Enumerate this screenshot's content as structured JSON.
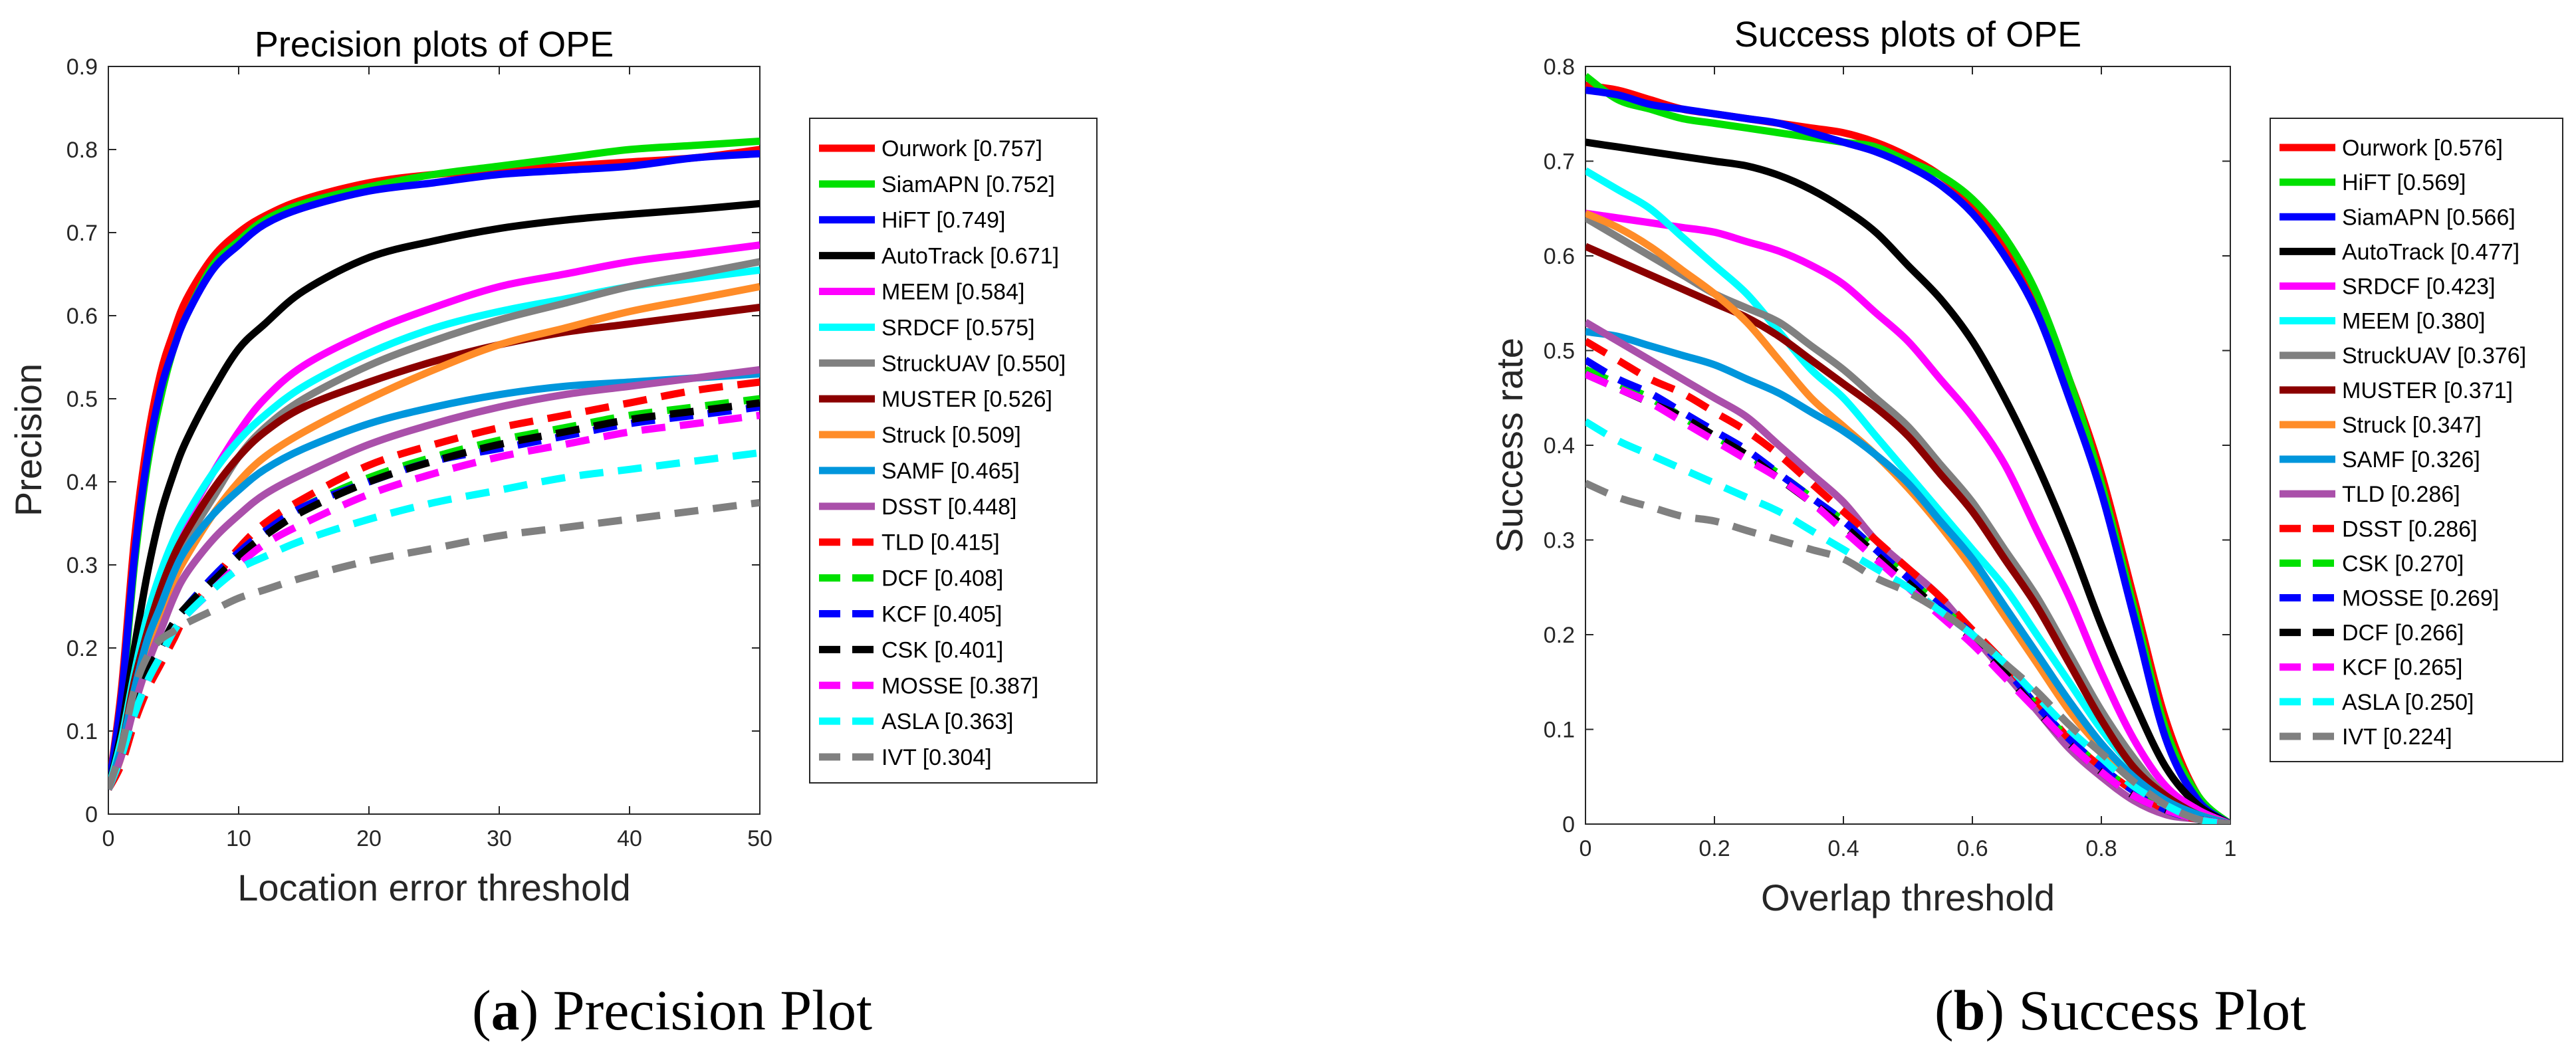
{
  "colors": {
    "red": "#ff0000",
    "green": "#00e000",
    "blue": "#0000ff",
    "black": "#000000",
    "magenta": "#ff00ff",
    "cyan": "#00ffff",
    "gray": "#808080",
    "darkred": "#8b0000",
    "orange": "#ff8c28",
    "skyblue": "#0096dc",
    "purple": "#aa50aa"
  },
  "captions": [
    {
      "letter": "a",
      "text": "Precision Plot"
    },
    {
      "letter": "b",
      "text": "Success Plot"
    }
  ],
  "chart_data": [
    {
      "type": "line",
      "title": "Precision plots of OPE",
      "xlabel": "Location error threshold",
      "ylabel": "Precision",
      "xlim": [
        0,
        50
      ],
      "ylim": [
        0,
        0.9
      ],
      "xticks": [
        0,
        10,
        20,
        30,
        40,
        50
      ],
      "yticks": [
        0,
        0.1,
        0.2,
        0.3,
        0.4,
        0.5,
        0.6,
        0.7,
        0.8,
        0.9
      ],
      "legend": "outside-right",
      "x": [
        0,
        1,
        2,
        3,
        4,
        5,
        6,
        8,
        10,
        12,
        15,
        20,
        25,
        30,
        35,
        40,
        45,
        50
      ],
      "series": [
        {
          "name": "Ourwork [0.757]",
          "color": "red",
          "dash": false,
          "values": [
            0.03,
            0.15,
            0.33,
            0.45,
            0.53,
            0.58,
            0.62,
            0.67,
            0.7,
            0.72,
            0.74,
            0.76,
            0.77,
            0.775,
            0.78,
            0.785,
            0.79,
            0.8
          ]
        },
        {
          "name": "SiamAPN [0.752]",
          "color": "green",
          "dash": false,
          "values": [
            0.03,
            0.13,
            0.3,
            0.42,
            0.5,
            0.56,
            0.6,
            0.66,
            0.69,
            0.715,
            0.735,
            0.755,
            0.77,
            0.78,
            0.79,
            0.8,
            0.805,
            0.81
          ]
        },
        {
          "name": "HiFT [0.749]",
          "color": "blue",
          "dash": false,
          "values": [
            0.03,
            0.14,
            0.31,
            0.43,
            0.51,
            0.56,
            0.6,
            0.655,
            0.685,
            0.71,
            0.73,
            0.75,
            0.76,
            0.77,
            0.775,
            0.78,
            0.79,
            0.795
          ]
        },
        {
          "name": "AutoTrack [0.671]",
          "color": "black",
          "dash": false,
          "values": [
            0.03,
            0.1,
            0.2,
            0.29,
            0.36,
            0.41,
            0.45,
            0.51,
            0.56,
            0.59,
            0.63,
            0.67,
            0.69,
            0.705,
            0.715,
            0.722,
            0.728,
            0.735
          ]
        },
        {
          "name": "MEEM [0.584]",
          "color": "magenta",
          "dash": false,
          "values": [
            0.03,
            0.08,
            0.16,
            0.23,
            0.28,
            0.32,
            0.355,
            0.41,
            0.46,
            0.5,
            0.54,
            0.58,
            0.61,
            0.635,
            0.65,
            0.665,
            0.675,
            0.685
          ]
        },
        {
          "name": "SRDCF [0.575]",
          "color": "cyan",
          "dash": false,
          "values": [
            0.03,
            0.09,
            0.17,
            0.24,
            0.29,
            0.33,
            0.36,
            0.41,
            0.45,
            0.48,
            0.515,
            0.555,
            0.585,
            0.605,
            0.62,
            0.635,
            0.645,
            0.655
          ]
        },
        {
          "name": "StruckUAV [0.550]",
          "color": "gray",
          "dash": false,
          "values": [
            0.03,
            0.08,
            0.15,
            0.21,
            0.26,
            0.3,
            0.33,
            0.38,
            0.43,
            0.465,
            0.5,
            0.54,
            0.57,
            0.595,
            0.615,
            0.635,
            0.65,
            0.665
          ]
        },
        {
          "name": "MUSTER [0.526]",
          "color": "darkred",
          "dash": false,
          "values": [
            0.03,
            0.08,
            0.16,
            0.22,
            0.27,
            0.31,
            0.34,
            0.39,
            0.43,
            0.46,
            0.49,
            0.52,
            0.545,
            0.565,
            0.58,
            0.59,
            0.6,
            0.61
          ]
        },
        {
          "name": "Struck [0.509]",
          "color": "orange",
          "dash": false,
          "values": [
            0.03,
            0.07,
            0.14,
            0.19,
            0.24,
            0.28,
            0.31,
            0.36,
            0.4,
            0.43,
            0.46,
            0.5,
            0.535,
            0.565,
            0.585,
            0.605,
            0.62,
            0.635
          ]
        },
        {
          "name": "SAMF [0.465]",
          "color": "skyblue",
          "dash": false,
          "values": [
            0.03,
            0.08,
            0.15,
            0.21,
            0.25,
            0.29,
            0.32,
            0.36,
            0.39,
            0.415,
            0.44,
            0.47,
            0.49,
            0.505,
            0.515,
            0.52,
            0.525,
            0.53
          ]
        },
        {
          "name": "DSST [0.448]",
          "color": "purple",
          "dash": false,
          "values": [
            0.03,
            0.07,
            0.13,
            0.18,
            0.22,
            0.26,
            0.29,
            0.33,
            0.36,
            0.385,
            0.41,
            0.445,
            0.47,
            0.49,
            0.505,
            0.515,
            0.525,
            0.535
          ]
        },
        {
          "name": "TLD [0.415]",
          "color": "red",
          "dash": true,
          "values": [
            0.03,
            0.06,
            0.11,
            0.15,
            0.18,
            0.21,
            0.24,
            0.28,
            0.32,
            0.35,
            0.38,
            0.42,
            0.445,
            0.465,
            0.48,
            0.495,
            0.51,
            0.52
          ]
        },
        {
          "name": "DCF [0.408]",
          "color": "green",
          "dash": true,
          "values": [
            0.03,
            0.07,
            0.12,
            0.17,
            0.2,
            0.23,
            0.25,
            0.285,
            0.315,
            0.34,
            0.37,
            0.405,
            0.43,
            0.45,
            0.465,
            0.48,
            0.49,
            0.5
          ]
        },
        {
          "name": "KCF [0.405]",
          "color": "blue",
          "dash": true,
          "values": [
            0.03,
            0.07,
            0.12,
            0.17,
            0.2,
            0.23,
            0.25,
            0.285,
            0.315,
            0.34,
            0.37,
            0.4,
            0.425,
            0.44,
            0.455,
            0.47,
            0.48,
            0.49
          ]
        },
        {
          "name": "CSK [0.401]",
          "color": "black",
          "dash": true,
          "values": [
            0.03,
            0.07,
            0.12,
            0.17,
            0.2,
            0.23,
            0.25,
            0.28,
            0.31,
            0.335,
            0.365,
            0.4,
            0.425,
            0.445,
            0.46,
            0.475,
            0.485,
            0.495
          ]
        },
        {
          "name": "MOSSE [0.387]",
          "color": "magenta",
          "dash": true,
          "values": [
            0.03,
            0.07,
            0.12,
            0.16,
            0.19,
            0.22,
            0.24,
            0.27,
            0.3,
            0.325,
            0.35,
            0.385,
            0.41,
            0.43,
            0.445,
            0.46,
            0.47,
            0.48
          ]
        },
        {
          "name": "ASLA [0.363]",
          "color": "cyan",
          "dash": true,
          "values": [
            0.03,
            0.07,
            0.12,
            0.16,
            0.19,
            0.22,
            0.24,
            0.27,
            0.295,
            0.31,
            0.33,
            0.355,
            0.375,
            0.39,
            0.405,
            0.415,
            0.425,
            0.435
          ]
        },
        {
          "name": "IVT [0.304]",
          "color": "gray",
          "dash": true,
          "values": [
            0.03,
            0.08,
            0.15,
            0.19,
            0.21,
            0.22,
            0.23,
            0.245,
            0.26,
            0.27,
            0.285,
            0.305,
            0.32,
            0.335,
            0.345,
            0.355,
            0.365,
            0.375
          ]
        }
      ]
    },
    {
      "type": "line",
      "title": "Success plots of OPE",
      "xlabel": "Overlap threshold",
      "ylabel": "Success rate",
      "xlim": [
        0,
        1
      ],
      "ylim": [
        0,
        0.8
      ],
      "xticks": [
        0,
        0.2,
        0.4,
        0.6,
        0.8,
        1
      ],
      "yticks": [
        0,
        0.1,
        0.2,
        0.3,
        0.4,
        0.5,
        0.6,
        0.7,
        0.8
      ],
      "legend": "outside-right",
      "x": [
        0,
        0.05,
        0.1,
        0.15,
        0.2,
        0.25,
        0.3,
        0.35,
        0.4,
        0.45,
        0.5,
        0.55,
        0.6,
        0.65,
        0.7,
        0.75,
        0.8,
        0.85,
        0.9,
        0.95,
        1.0
      ],
      "series": [
        {
          "name": "Ourwork [0.576]",
          "color": "red",
          "dash": false,
          "values": [
            0.78,
            0.775,
            0.765,
            0.755,
            0.75,
            0.745,
            0.74,
            0.735,
            0.73,
            0.72,
            0.705,
            0.685,
            0.655,
            0.61,
            0.55,
            0.47,
            0.37,
            0.24,
            0.11,
            0.03,
            0.0
          ]
        },
        {
          "name": "HiFT [0.569]",
          "color": "green",
          "dash": false,
          "values": [
            0.79,
            0.765,
            0.755,
            0.745,
            0.74,
            0.735,
            0.73,
            0.725,
            0.72,
            0.715,
            0.7,
            0.685,
            0.66,
            0.62,
            0.56,
            0.47,
            0.36,
            0.23,
            0.1,
            0.03,
            0.0
          ]
        },
        {
          "name": "SiamAPN [0.566]",
          "color": "blue",
          "dash": false,
          "values": [
            0.775,
            0.77,
            0.76,
            0.755,
            0.75,
            0.745,
            0.74,
            0.73,
            0.72,
            0.71,
            0.695,
            0.675,
            0.645,
            0.6,
            0.54,
            0.45,
            0.35,
            0.22,
            0.09,
            0.025,
            0.0
          ]
        },
        {
          "name": "AutoTrack [0.477]",
          "color": "black",
          "dash": false,
          "values": [
            0.72,
            0.715,
            0.71,
            0.705,
            0.7,
            0.695,
            0.685,
            0.67,
            0.65,
            0.625,
            0.59,
            0.555,
            0.51,
            0.45,
            0.38,
            0.3,
            0.21,
            0.13,
            0.06,
            0.02,
            0.0
          ]
        },
        {
          "name": "SRDCF [0.423]",
          "color": "magenta",
          "dash": false,
          "values": [
            0.645,
            0.64,
            0.635,
            0.63,
            0.625,
            0.615,
            0.605,
            0.59,
            0.57,
            0.54,
            0.51,
            0.47,
            0.43,
            0.38,
            0.31,
            0.24,
            0.16,
            0.09,
            0.04,
            0.015,
            0.0
          ]
        },
        {
          "name": "MEEM [0.380]",
          "color": "cyan",
          "dash": false,
          "values": [
            0.69,
            0.67,
            0.65,
            0.62,
            0.59,
            0.56,
            0.52,
            0.48,
            0.45,
            0.41,
            0.37,
            0.33,
            0.29,
            0.25,
            0.2,
            0.15,
            0.1,
            0.06,
            0.03,
            0.01,
            0.0
          ]
        },
        {
          "name": "StruckUAV [0.376]",
          "color": "gray",
          "dash": false,
          "values": [
            0.64,
            0.62,
            0.6,
            0.58,
            0.56,
            0.545,
            0.53,
            0.505,
            0.48,
            0.45,
            0.42,
            0.38,
            0.34,
            0.29,
            0.24,
            0.18,
            0.12,
            0.07,
            0.03,
            0.01,
            0.0
          ]
        },
        {
          "name": "MUSTER [0.371]",
          "color": "darkred",
          "dash": false,
          "values": [
            0.61,
            0.595,
            0.58,
            0.565,
            0.55,
            0.535,
            0.515,
            0.49,
            0.465,
            0.44,
            0.41,
            0.37,
            0.33,
            0.28,
            0.23,
            0.17,
            0.11,
            0.06,
            0.03,
            0.01,
            0.0
          ]
        },
        {
          "name": "Struck [0.347]",
          "color": "orange",
          "dash": false,
          "values": [
            0.645,
            0.63,
            0.61,
            0.585,
            0.56,
            0.53,
            0.49,
            0.45,
            0.42,
            0.39,
            0.355,
            0.315,
            0.27,
            0.22,
            0.17,
            0.12,
            0.08,
            0.045,
            0.02,
            0.01,
            0.0
          ]
        },
        {
          "name": "SAMF [0.326]",
          "color": "skyblue",
          "dash": false,
          "values": [
            0.52,
            0.515,
            0.505,
            0.495,
            0.485,
            0.47,
            0.455,
            0.435,
            0.415,
            0.39,
            0.36,
            0.32,
            0.28,
            0.23,
            0.18,
            0.13,
            0.085,
            0.05,
            0.025,
            0.01,
            0.0
          ]
        },
        {
          "name": "TLD [0.286]",
          "color": "purple",
          "dash": false,
          "values": [
            0.53,
            0.51,
            0.49,
            0.47,
            0.45,
            0.43,
            0.4,
            0.37,
            0.34,
            0.3,
            0.27,
            0.24,
            0.2,
            0.16,
            0.12,
            0.08,
            0.05,
            0.025,
            0.01,
            0.005,
            0.0
          ]
        },
        {
          "name": "DSST [0.286]",
          "color": "red",
          "dash": true,
          "values": [
            0.51,
            0.49,
            0.47,
            0.455,
            0.435,
            0.415,
            0.39,
            0.36,
            0.33,
            0.3,
            0.27,
            0.24,
            0.205,
            0.17,
            0.13,
            0.09,
            0.06,
            0.035,
            0.015,
            0.005,
            0.0
          ]
        },
        {
          "name": "CSK [0.270]",
          "color": "green",
          "dash": true,
          "values": [
            0.48,
            0.465,
            0.45,
            0.43,
            0.41,
            0.39,
            0.37,
            0.345,
            0.32,
            0.29,
            0.26,
            0.23,
            0.2,
            0.165,
            0.125,
            0.09,
            0.06,
            0.035,
            0.015,
            0.005,
            0.0
          ]
        },
        {
          "name": "MOSSE [0.269]",
          "color": "blue",
          "dash": true,
          "values": [
            0.49,
            0.47,
            0.455,
            0.435,
            0.415,
            0.395,
            0.37,
            0.345,
            0.32,
            0.29,
            0.26,
            0.23,
            0.2,
            0.165,
            0.125,
            0.09,
            0.06,
            0.035,
            0.015,
            0.005,
            0.0
          ]
        },
        {
          "name": "DCF [0.266]",
          "color": "black",
          "dash": true,
          "values": [
            0.475,
            0.46,
            0.445,
            0.43,
            0.41,
            0.39,
            0.365,
            0.34,
            0.315,
            0.285,
            0.255,
            0.225,
            0.195,
            0.16,
            0.12,
            0.085,
            0.055,
            0.03,
            0.015,
            0.005,
            0.0
          ]
        },
        {
          "name": "KCF [0.265]",
          "color": "magenta",
          "dash": true,
          "values": [
            0.475,
            0.46,
            0.445,
            0.425,
            0.405,
            0.385,
            0.365,
            0.34,
            0.31,
            0.28,
            0.25,
            0.22,
            0.19,
            0.155,
            0.12,
            0.085,
            0.055,
            0.03,
            0.015,
            0.005,
            0.0
          ]
        },
        {
          "name": "ASLA [0.250]",
          "color": "cyan",
          "dash": true,
          "values": [
            0.425,
            0.405,
            0.39,
            0.375,
            0.36,
            0.345,
            0.33,
            0.31,
            0.29,
            0.27,
            0.25,
            0.225,
            0.2,
            0.17,
            0.135,
            0.1,
            0.07,
            0.04,
            0.02,
            0.005,
            0.0
          ]
        },
        {
          "name": "IVT [0.224]",
          "color": "gray",
          "dash": true,
          "values": [
            0.36,
            0.345,
            0.335,
            0.325,
            0.32,
            0.31,
            0.3,
            0.29,
            0.28,
            0.26,
            0.245,
            0.225,
            0.2,
            0.17,
            0.14,
            0.105,
            0.075,
            0.045,
            0.02,
            0.005,
            0.0
          ]
        }
      ]
    }
  ]
}
